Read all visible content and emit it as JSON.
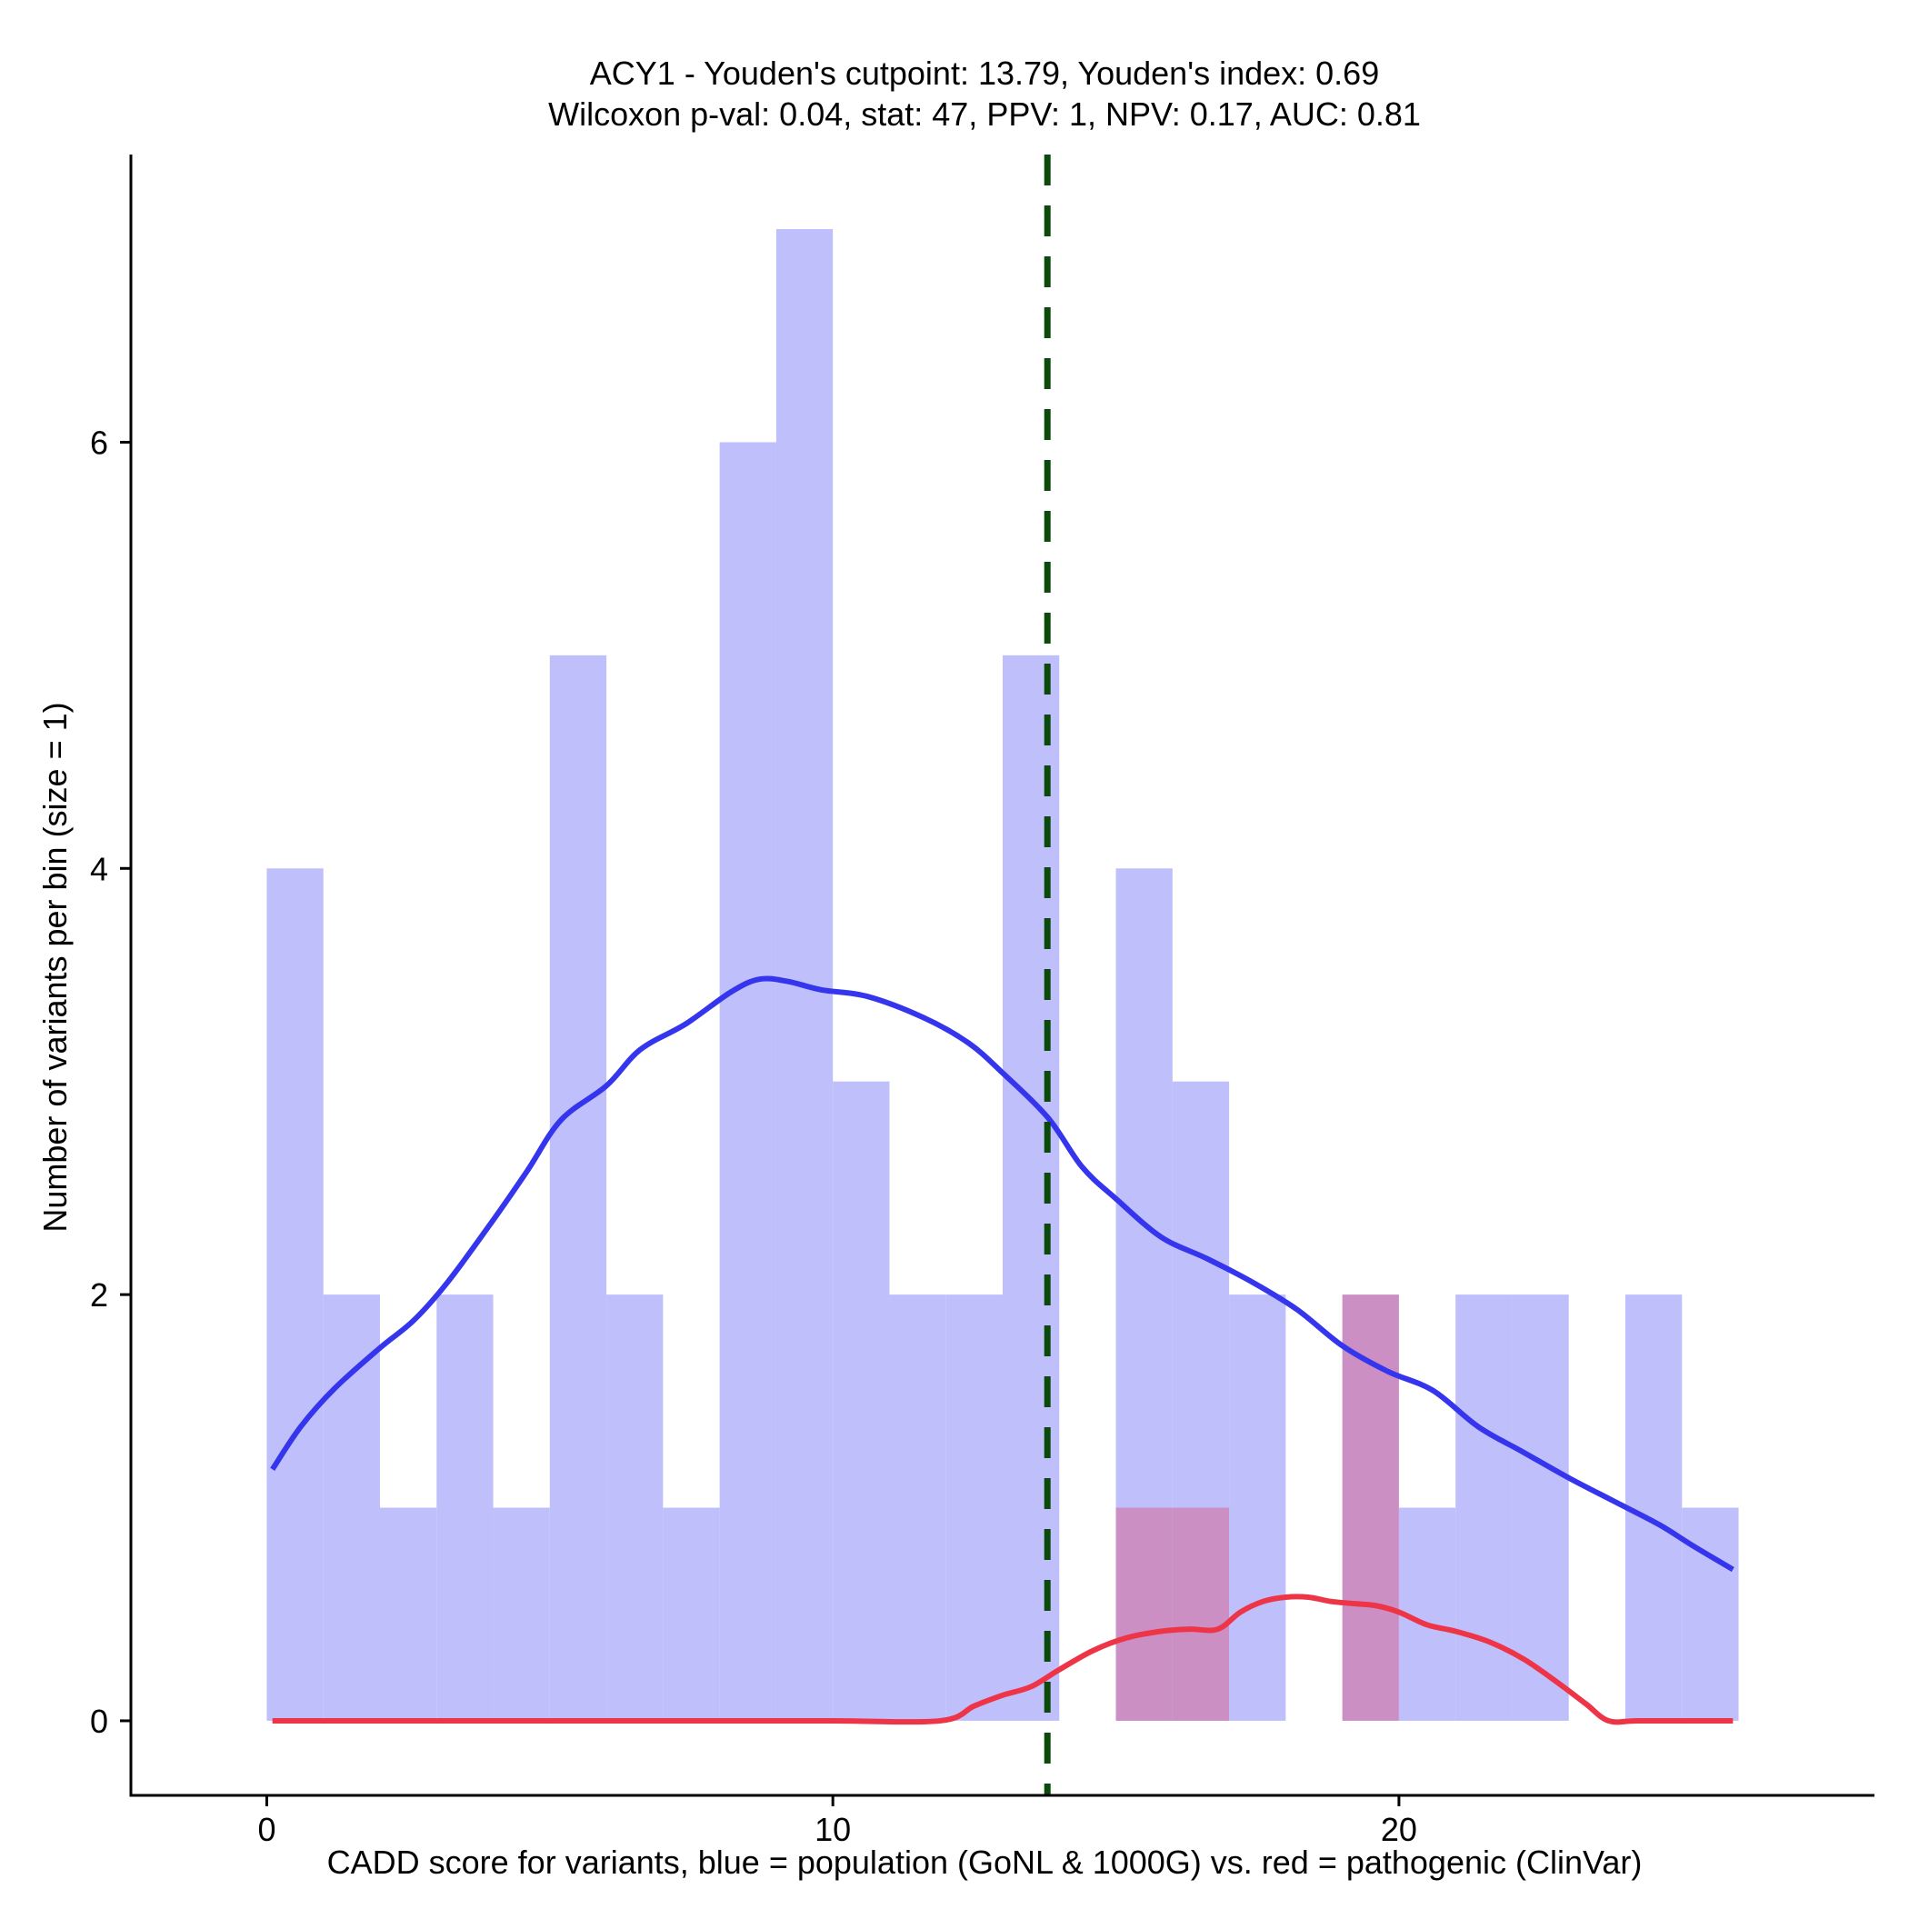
{
  "chart_data": {
    "type": "bar",
    "title_line1": "ACY1 - Youden's cutpoint: 13.79, Youden's index: 0.69",
    "title_line2": "Wilcoxon p-val: 0.04, stat: 47, PPV: 1, NPV: 0.17, AUC: 0.81",
    "xlabel": "CADD score for variants, blue = population (GoNL & 1000G) vs. red = pathogenic (ClinVar)",
    "ylabel": "Number of variants per bin (size = 1)",
    "xlim": [
      -2.4,
      28.4
    ],
    "ylim": [
      -0.35,
      7.35
    ],
    "x_ticks": [
      {
        "value": 0,
        "label": "0"
      },
      {
        "value": 10,
        "label": "10"
      },
      {
        "value": 20,
        "label": "20"
      }
    ],
    "y_ticks": [
      {
        "value": 0,
        "label": "0"
      },
      {
        "value": 2,
        "label": "2"
      },
      {
        "value": 4,
        "label": "4"
      },
      {
        "value": 6,
        "label": "6"
      }
    ],
    "bin_size": 1,
    "cutpoint": 13.79,
    "colors": {
      "population_fill": "#bfbffc",
      "pathogenic_fill": "#cc8fc4",
      "population_line": "#3535ee",
      "pathogenic_line": "#ee3548",
      "cutpoint_line": "#0b4a0b",
      "axis": "#000000"
    },
    "series": [
      {
        "name": "population (GoNL & 1000G)",
        "bin_starts": [
          0,
          1,
          2,
          3,
          4,
          5,
          6,
          7,
          8,
          9,
          10,
          11,
          12,
          13,
          14,
          15,
          16,
          17,
          18,
          19,
          20,
          21,
          22,
          23,
          24,
          25
        ],
        "values": [
          4,
          2,
          1,
          2,
          1,
          5,
          2,
          1,
          6,
          7,
          3,
          2,
          2,
          5,
          0,
          4,
          3,
          2,
          0,
          0,
          1,
          2,
          2,
          0,
          2,
          1
        ]
      },
      {
        "name": "pathogenic (ClinVar)",
        "bin_starts": [
          15,
          16,
          19
        ],
        "values": [
          1,
          1,
          2
        ]
      }
    ],
    "density_lines": [
      {
        "name": "population density",
        "x": [
          0.1,
          0.6,
          1.2,
          2.0,
          2.6,
          3.2,
          4.0,
          4.6,
          5.2,
          6.0,
          6.6,
          7.4,
          8.2,
          8.7,
          9.2,
          9.8,
          10.6,
          11.6,
          12.4,
          13.0,
          13.8,
          14.4,
          15.0,
          15.8,
          16.6,
          17.4,
          18.2,
          19.0,
          19.8,
          20.6,
          21.4,
          22.2,
          23.0,
          23.8,
          24.6,
          25.2,
          25.9
        ],
        "y": [
          1.18,
          1.38,
          1.56,
          1.75,
          1.88,
          2.06,
          2.35,
          2.58,
          2.82,
          2.98,
          3.15,
          3.27,
          3.42,
          3.48,
          3.47,
          3.43,
          3.4,
          3.3,
          3.18,
          3.04,
          2.83,
          2.6,
          2.45,
          2.27,
          2.17,
          2.06,
          1.93,
          1.76,
          1.64,
          1.55,
          1.38,
          1.26,
          1.14,
          1.03,
          0.92,
          0.82,
          0.71
        ]
      },
      {
        "name": "pathogenic density",
        "x": [
          0.1,
          2.0,
          4.0,
          6.0,
          8.0,
          10.0,
          11.9,
          12.5,
          13.0,
          13.5,
          14.0,
          14.6,
          15.2,
          15.8,
          16.3,
          16.8,
          17.2,
          17.6,
          18.0,
          18.4,
          18.8,
          19.2,
          19.6,
          20.0,
          20.5,
          21.0,
          21.6,
          22.2,
          22.8,
          23.3,
          23.7,
          24.2,
          25.0,
          25.9
        ],
        "y": [
          0.0,
          0.0,
          0.0,
          0.0,
          0.0,
          0.0,
          0.0,
          0.07,
          0.12,
          0.16,
          0.24,
          0.33,
          0.39,
          0.42,
          0.43,
          0.43,
          0.51,
          0.56,
          0.58,
          0.58,
          0.56,
          0.55,
          0.54,
          0.51,
          0.45,
          0.42,
          0.37,
          0.29,
          0.18,
          0.08,
          0.0,
          0.0,
          0.0,
          0.0
        ]
      }
    ]
  }
}
